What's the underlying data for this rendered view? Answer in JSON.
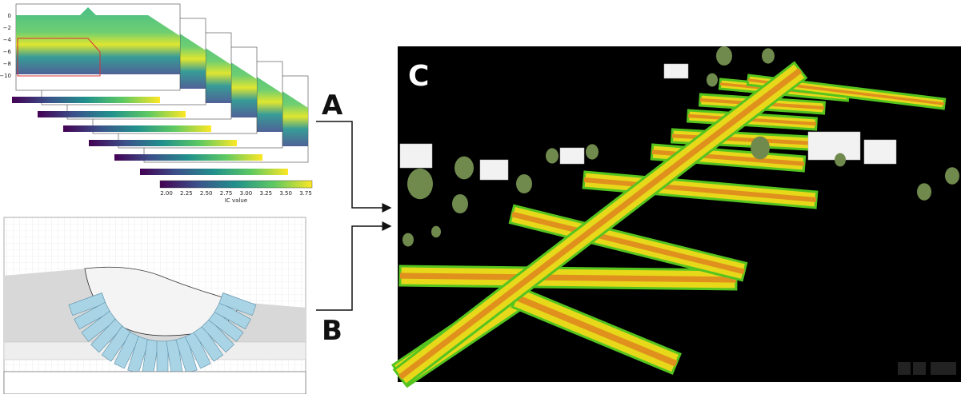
{
  "panels": [
    {
      "label": "A"
    },
    {
      "label": "B"
    },
    {
      "label": "C"
    }
  ],
  "panel_a": {
    "colorbar_label": "IC value",
    "colorbar_ticks": [
      "2.00",
      "2.25",
      "2.50",
      "2.75",
      "3.00",
      "3.25",
      "3.50",
      "3.75"
    ],
    "y_ticks": [
      "0",
      "−2",
      "−4",
      "−6",
      "−8",
      "−10"
    ]
  }
}
